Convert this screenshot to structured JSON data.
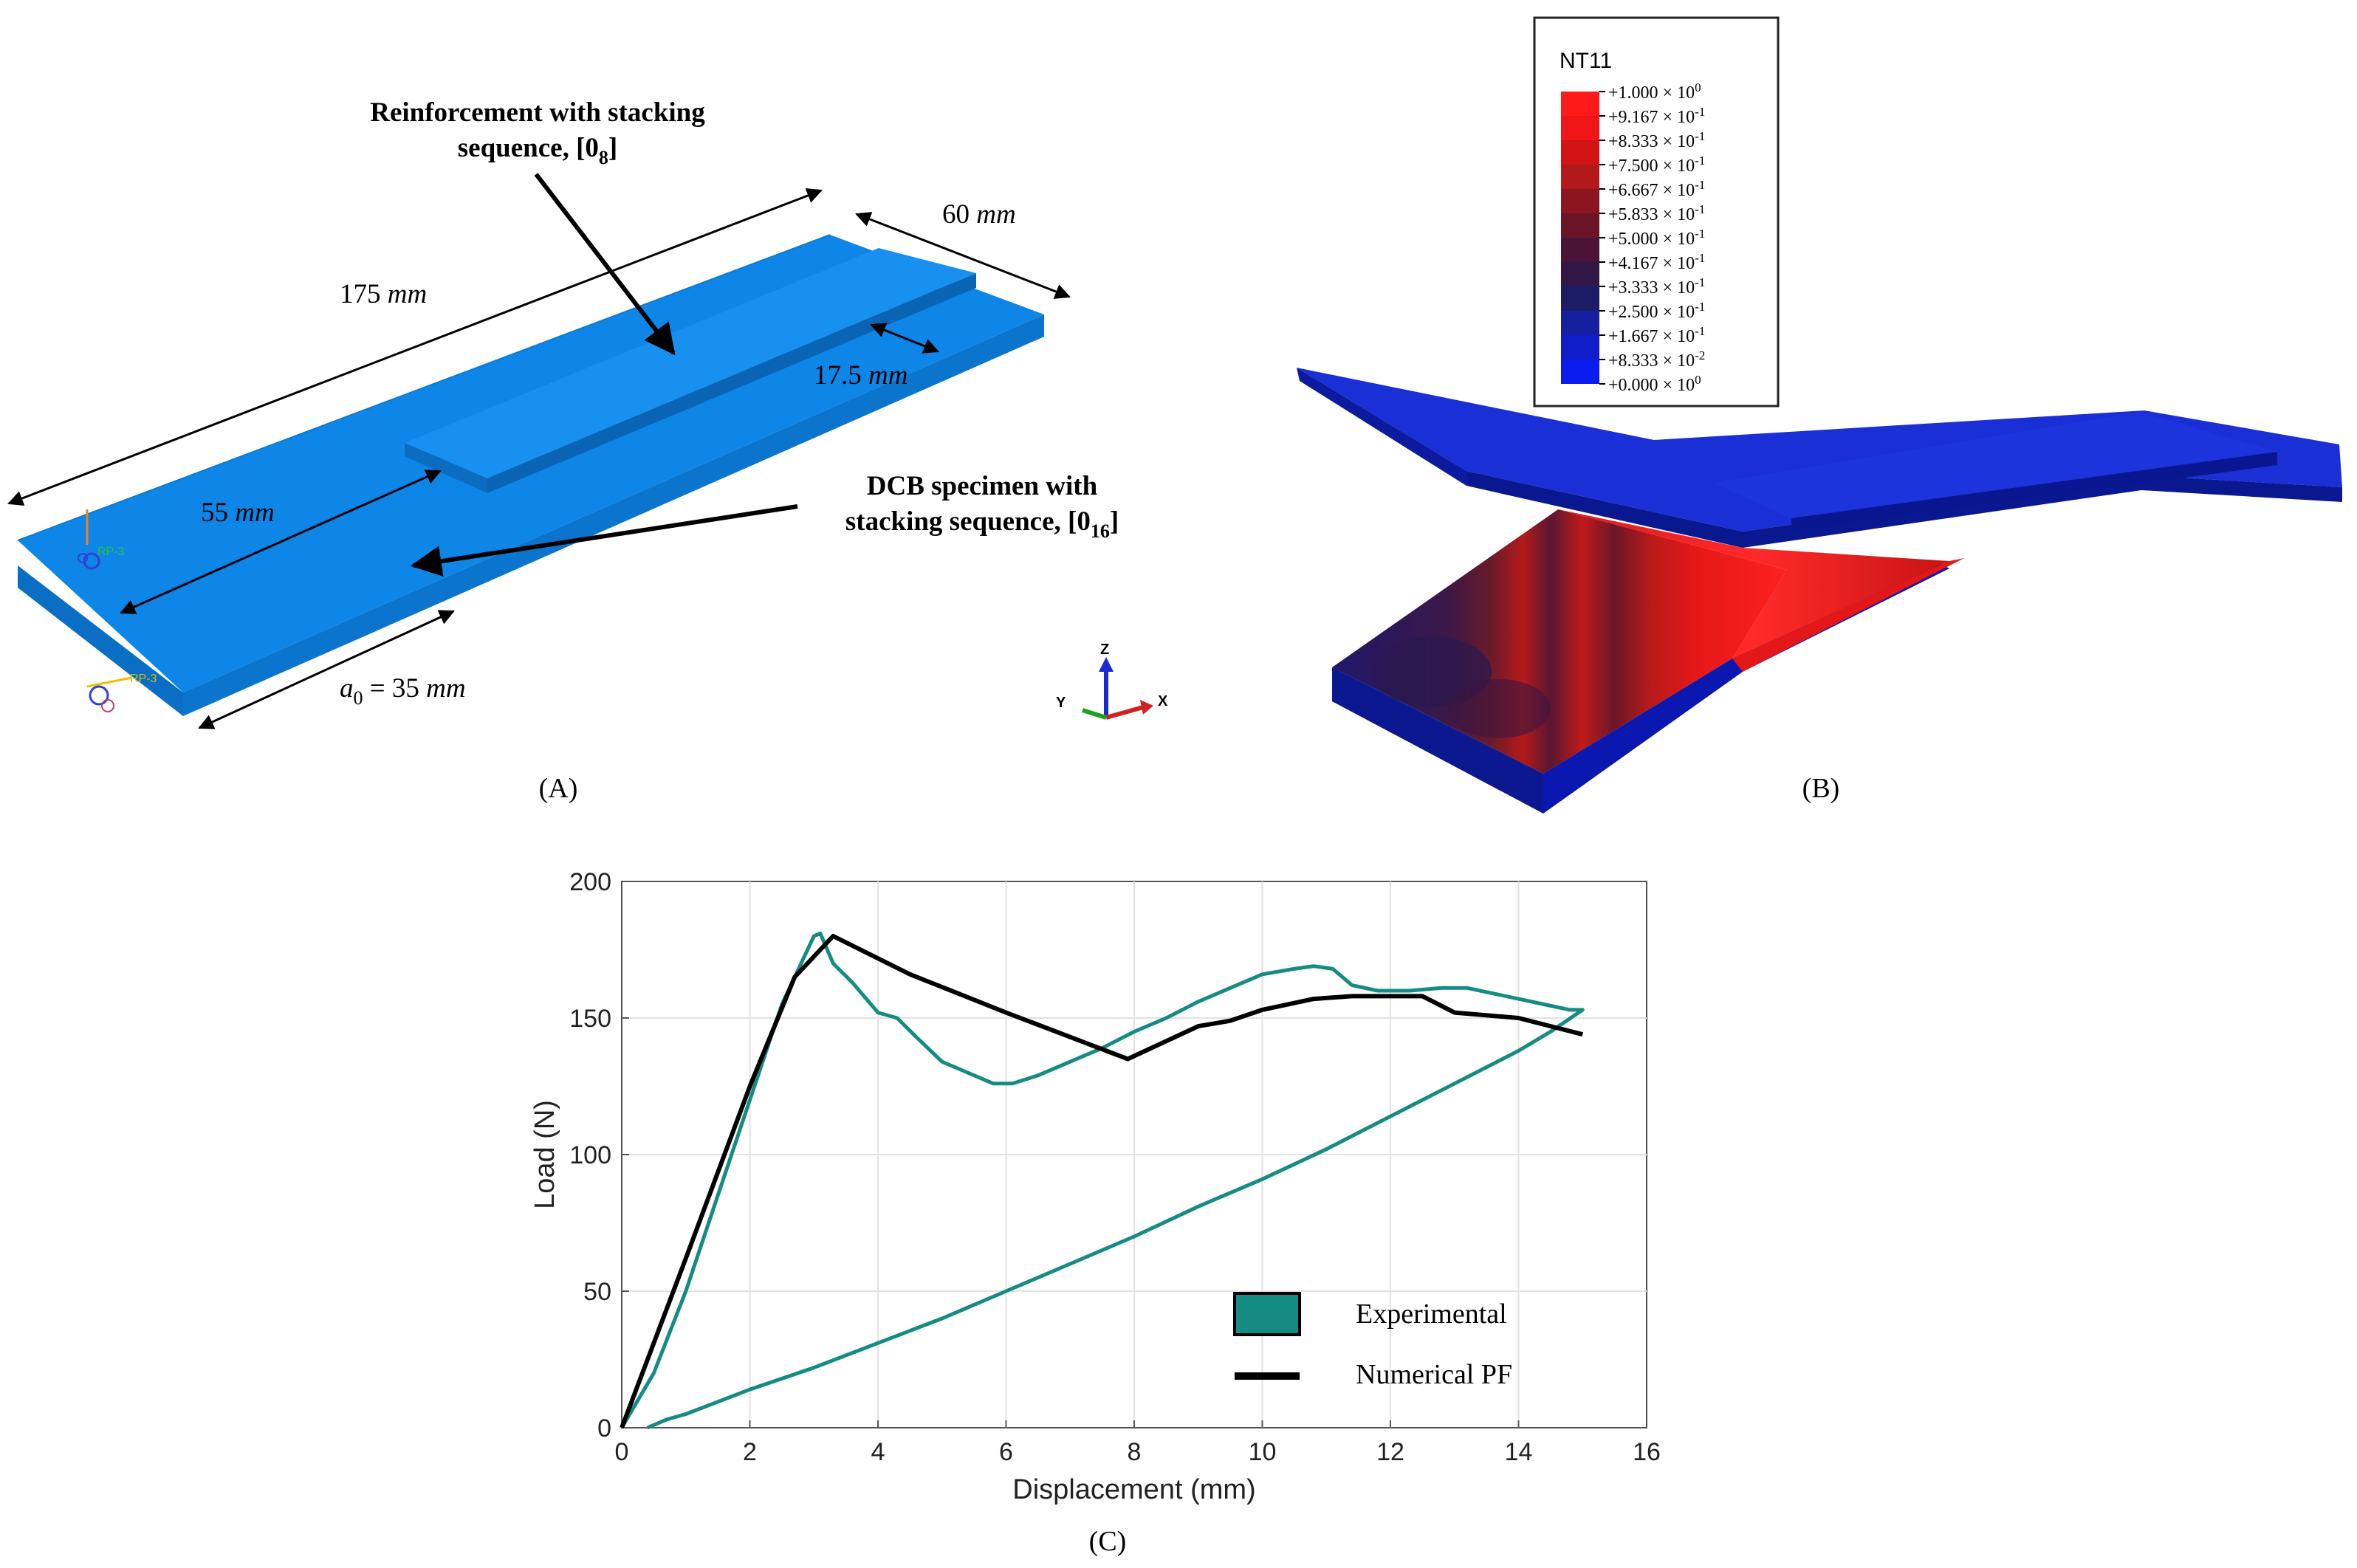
{
  "panelA": {
    "caption": "(A)",
    "reinforcement_label_line1": "Reinforcement with stacking",
    "reinforcement_label_line2": "sequence, [0",
    "reinforcement_sub": "8",
    "dcb_label_line1": "DCB specimen with",
    "dcb_label_line2": "stacking sequence, [0",
    "dcb_sub": "16",
    "dim_175": "175",
    "dim_60": "60",
    "dim_17_5": "17.5",
    "dim_55": "55",
    "a0_symbol": "a",
    "a0_sub": "0",
    "a0_value": " = 35",
    "unit": "mm",
    "rp_label": "RP-3",
    "specimen_color": "#0d86e8"
  },
  "panelB": {
    "caption": "(B)",
    "legend_title": "NT11",
    "legend_entries": [
      {
        "mantissa": "+1.000",
        "exp": "0",
        "color": "#ff1a1a"
      },
      {
        "mantissa": "+9.167",
        "exp": "-1",
        "color": "#ee1616"
      },
      {
        "mantissa": "+8.333",
        "exp": "-1",
        "color": "#d21414"
      },
      {
        "mantissa": "+7.500",
        "exp": "-1",
        "color": "#b01a1a"
      },
      {
        "mantissa": "+6.667",
        "exp": "-1",
        "color": "#8c1620"
      },
      {
        "mantissa": "+5.833",
        "exp": "-1",
        "color": "#6a1428"
      },
      {
        "mantissa": "+5.000",
        "exp": "-1",
        "color": "#4b1436"
      },
      {
        "mantissa": "+4.167",
        "exp": "-1",
        "color": "#321848"
      },
      {
        "mantissa": "+3.333",
        "exp": "-1",
        "color": "#1d1c66"
      },
      {
        "mantissa": "+2.500",
        "exp": "-1",
        "color": "#1420a0"
      },
      {
        "mantissa": "+1.667",
        "exp": "-1",
        "color": "#0f1ec8"
      },
      {
        "mantissa": "+8.333",
        "exp": "-2",
        "color": "#0a1ce6"
      },
      {
        "mantissa": "+0.000",
        "exp": "0",
        "color": null
      }
    ],
    "axis_z": "Z",
    "axis_y": "Y",
    "axis_x": "X"
  },
  "panelC": {
    "caption": "(C)",
    "chart_data": {
      "type": "line",
      "title": "",
      "xlabel": "Displacement (mm)",
      "ylabel": "Load (N)",
      "xlim": [
        0,
        16
      ],
      "ylim": [
        0,
        200
      ],
      "xticks": [
        0,
        2,
        4,
        6,
        8,
        10,
        12,
        14,
        16
      ],
      "yticks": [
        0,
        50,
        100,
        150,
        200
      ],
      "grid": true,
      "legend_position": "bottom-right",
      "series": [
        {
          "name": "Experimental",
          "color": "#148c84",
          "x": [
            0,
            0.5,
            1,
            1.5,
            2,
            2.5,
            2.8,
            3.0,
            3.1,
            3.3,
            3.6,
            4.0,
            4.3,
            4.6,
            5.0,
            5.4,
            5.8,
            6.1,
            6.5,
            7.0,
            7.5,
            8.0,
            8.5,
            9.0,
            9.5,
            10.0,
            10.5,
            10.8,
            11.1,
            11.4,
            11.8,
            12.3,
            12.8,
            13.2,
            13.6,
            14.0,
            14.4,
            14.8,
            15.0,
            14.5,
            14.0,
            13.0,
            12.0,
            11.0,
            10.0,
            9.0,
            8.0,
            7.0,
            6.0,
            5.0,
            4.0,
            3.0,
            2.0,
            1.0,
            0.7,
            0.4
          ],
          "y": [
            0,
            20,
            50,
            85,
            120,
            155,
            170,
            180,
            181,
            170,
            163,
            152,
            150,
            143,
            134,
            130,
            126,
            126,
            129,
            134,
            139,
            145,
            150,
            156,
            161,
            166,
            168,
            169,
            168,
            162,
            160,
            160,
            161,
            161,
            159,
            157,
            155,
            153,
            153,
            145,
            138,
            126,
            114,
            102,
            91,
            81,
            70,
            60,
            50,
            40,
            31,
            22,
            14,
            5,
            3,
            0
          ]
        },
        {
          "name": "Numerical PF",
          "color": "#000000",
          "x": [
            0,
            1,
            2,
            2.7,
            3.3,
            4.5,
            6,
            7.9,
            9,
            9.5,
            10,
            10.8,
            11.4,
            12.5,
            13,
            14,
            15
          ],
          "y": [
            0,
            62,
            125,
            165,
            180,
            166,
            152,
            135,
            147,
            149,
            153,
            157,
            158,
            158,
            152,
            150,
            144
          ]
        }
      ]
    }
  }
}
